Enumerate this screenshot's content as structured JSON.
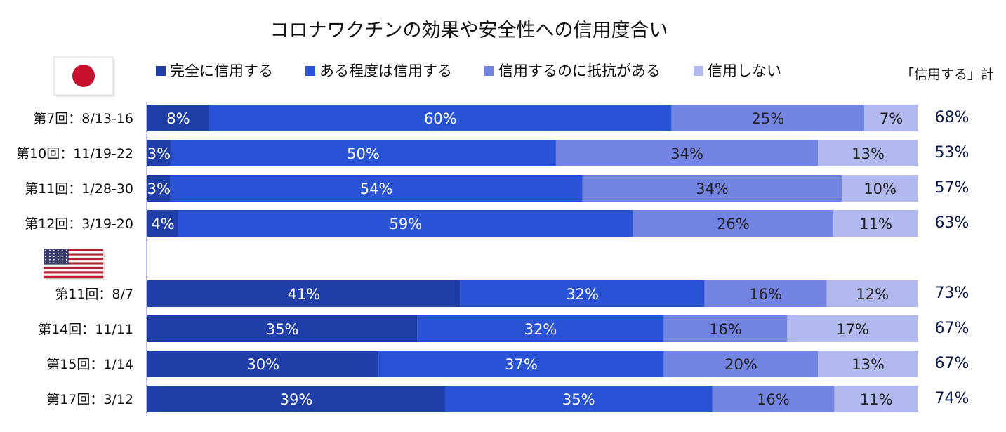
{
  "chart_data": {
    "type": "bar",
    "orientation": "horizontal",
    "stacked": true,
    "percent": true,
    "title": "コロナワクチンの効果や安全性への信用度合い",
    "total_header": "「信用する」計",
    "legend": [
      "完全に信用する",
      "ある程度は信用する",
      "信用するのに抵抗がある",
      "信用しない"
    ],
    "colors": [
      "#1f3ea8",
      "#2a52d4",
      "#7384e3",
      "#b1b9ee"
    ],
    "label_colors": [
      "#ffffff",
      "#ffffff",
      "#222222",
      "#222222"
    ],
    "groups": [
      {
        "flag": "japan-flag",
        "rows": [
          {
            "label": "第7回：8/13-16",
            "values": [
              8,
              60,
              25,
              7
            ],
            "total": "68%"
          },
          {
            "label": "第10回：11/19-22",
            "values": [
              3,
              50,
              34,
              13
            ],
            "total": "53%"
          },
          {
            "label": "第11回：1/28-30",
            "values": [
              3,
              54,
              34,
              10
            ],
            "total": "57%"
          },
          {
            "label": "第12回：3/19-20",
            "values": [
              4,
              59,
              26,
              11
            ],
            "total": "63%"
          }
        ]
      },
      {
        "flag": "usa-flag",
        "rows": [
          {
            "label": "第11回：8/7",
            "values": [
              41,
              32,
              16,
              12
            ],
            "total": "73%"
          },
          {
            "label": "第14回：11/11",
            "values": [
              35,
              32,
              16,
              17
            ],
            "total": "67%"
          },
          {
            "label": "第15回：1/14",
            "values": [
              30,
              37,
              20,
              13
            ],
            "total": "67%"
          },
          {
            "label": "第17回：3/12",
            "values": [
              39,
              35,
              16,
              11
            ],
            "total": "74%"
          }
        ]
      }
    ]
  }
}
